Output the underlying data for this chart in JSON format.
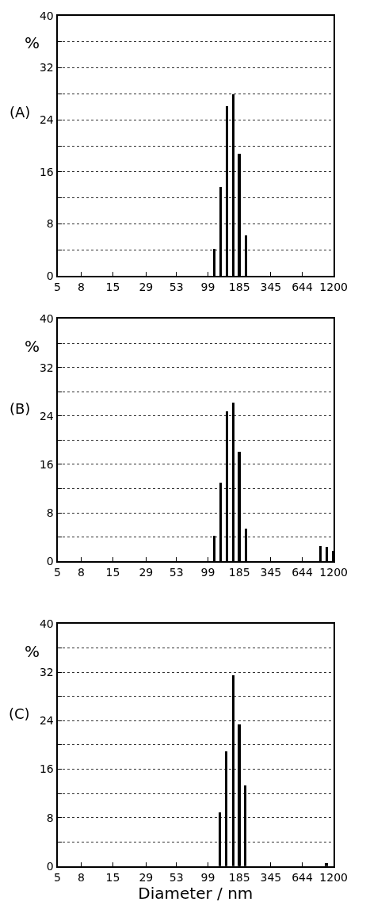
{
  "chart_data": [
    {
      "type": "bar",
      "title": "(A)",
      "ylabel": "%",
      "x": [
        112,
        127,
        143,
        162,
        183,
        209
      ],
      "values": [
        4.2,
        13.7,
        26.1,
        28.0,
        18.8,
        6.2
      ],
      "color": "#000000",
      "log": "x",
      "xlim": [
        5,
        1200
      ],
      "xticks": [
        5,
        8,
        15,
        29,
        53,
        99,
        185,
        345,
        644,
        1200
      ],
      "ylim": [
        0,
        40
      ],
      "yticks": [
        0,
        {
          "value": 4,
          "label": null
        },
        8,
        {
          "value": 12,
          "label": null
        },
        16,
        {
          "value": 20,
          "label": null
        },
        24,
        {
          "value": 28,
          "label": null
        },
        32,
        {
          "value": 36,
          "label": null
        },
        40
      ],
      "grid": "y",
      "line_style": "dotted"
    },
    {
      "type": "bar",
      "title": "(B)",
      "ylabel": "%",
      "x": [
        112,
        127,
        143,
        162,
        183,
        209,
        918,
        1045,
        1180
      ],
      "values": [
        4.2,
        12.9,
        24.7,
        26.1,
        18.0,
        5.3,
        2.5,
        2.3,
        1.6
      ],
      "color": "#000000",
      "log": "x",
      "xlim": [
        5,
        1200
      ],
      "xticks": [
        5,
        8,
        15,
        29,
        53,
        99,
        185,
        345,
        644,
        1200
      ],
      "ylim": [
        0,
        40
      ],
      "yticks": [
        0,
        {
          "value": 4,
          "label": null
        },
        8,
        {
          "value": 12,
          "label": null
        },
        16,
        {
          "value": 20,
          "label": null
        },
        24,
        {
          "value": 28,
          "label": null
        },
        32,
        {
          "value": 36,
          "label": null
        },
        40
      ],
      "grid": "y",
      "line_style": "dotted"
    },
    {
      "type": "bar",
      "title": "(C)",
      "ylabel": "%",
      "xlabel": "Diameter / nm",
      "x": [
        125,
        142,
        162,
        183,
        206,
        1032
      ],
      "values": [
        8.8,
        19.0,
        31.5,
        23.4,
        13.3,
        0.5
      ],
      "color": "#000000",
      "log": "x",
      "xlim": [
        5,
        1200
      ],
      "xticks": [
        5,
        8,
        15,
        29,
        53,
        99,
        185,
        345,
        644,
        1200
      ],
      "ylim": [
        0,
        40
      ],
      "yticks": [
        0,
        {
          "value": 4,
          "label": null
        },
        8,
        {
          "value": 12,
          "label": null
        },
        16,
        {
          "value": 20,
          "label": null
        },
        24,
        {
          "value": 28,
          "label": null
        },
        32,
        {
          "value": 36,
          "label": null
        },
        40
      ],
      "grid": "y",
      "line_style": "dotted"
    }
  ]
}
